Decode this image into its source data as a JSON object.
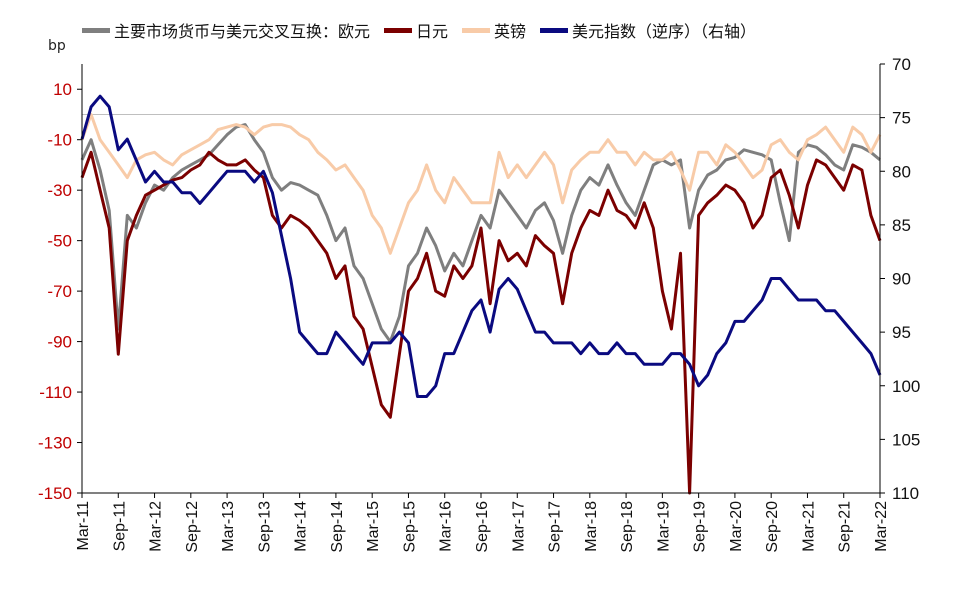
{
  "chart_data": {
    "type": "line",
    "unit_left": "bp",
    "left_axis": {
      "ylim": [
        -150,
        20
      ],
      "ticks": [
        10,
        -10,
        -30,
        -50,
        -70,
        -90,
        -110,
        -130,
        -150
      ],
      "tick_color": "#c00000"
    },
    "right_axis": {
      "ylim": [
        70,
        110
      ],
      "ticks": [
        70,
        75,
        80,
        85,
        90,
        95,
        100,
        105,
        110
      ],
      "inverted": true
    },
    "x_labels": [
      "Mar-11",
      "Sep-11",
      "Mar-12",
      "Sep-12",
      "Mar-13",
      "Sep-13",
      "Mar-14",
      "Sep-14",
      "Mar-15",
      "Sep-15",
      "Mar-16",
      "Sep-16",
      "Mar-17",
      "Sep-17",
      "Mar-18",
      "Sep-18",
      "Mar-19",
      "Sep-19",
      "Mar-20",
      "Sep-20",
      "Mar-21",
      "Sep-21",
      "Mar-22"
    ],
    "x_step": 0.25,
    "series": [
      {
        "name": "主要市场货币与美元交叉互换：欧元",
        "color": "#7f7f7f",
        "axis": "left",
        "values": [
          -18,
          -10,
          -22,
          -38,
          -85,
          -40,
          -45,
          -35,
          -28,
          -30,
          -25,
          -22,
          -20,
          -18,
          -16,
          -12,
          -8,
          -5,
          -4,
          -10,
          -15,
          -25,
          -30,
          -27,
          -28,
          -30,
          -32,
          -40,
          -50,
          -45,
          -60,
          -65,
          -75,
          -85,
          -90,
          -80,
          -60,
          -55,
          -45,
          -52,
          -62,
          -55,
          -60,
          -50,
          -40,
          -45,
          -30,
          -35,
          -40,
          -45,
          -38,
          -35,
          -42,
          -55,
          -40,
          -30,
          -25,
          -28,
          -20,
          -28,
          -35,
          -40,
          -30,
          -20,
          -18,
          -20,
          -18,
          -45,
          -30,
          -24,
          -22,
          -18,
          -17,
          -14,
          -15,
          -16,
          -18,
          -35,
          -50,
          -15,
          -12,
          -13,
          -16,
          -20,
          -22,
          -12,
          -13,
          -15,
          -18
        ]
      },
      {
        "name": "日元",
        "color": "#7b0000",
        "axis": "left",
        "values": [
          -25,
          -15,
          -30,
          -45,
          -95,
          -50,
          -40,
          -32,
          -30,
          -28,
          -26,
          -25,
          -22,
          -20,
          -15,
          -18,
          -20,
          -20,
          -18,
          -22,
          -25,
          -40,
          -45,
          -40,
          -42,
          -45,
          -50,
          -55,
          -65,
          -60,
          -80,
          -85,
          -100,
          -115,
          -120,
          -95,
          -70,
          -65,
          -55,
          -70,
          -72,
          -60,
          -65,
          -60,
          -45,
          -75,
          -50,
          -58,
          -55,
          -60,
          -48,
          -52,
          -55,
          -75,
          -55,
          -45,
          -38,
          -40,
          -30,
          -38,
          -40,
          -45,
          -35,
          -45,
          -70,
          -85,
          -55,
          -150,
          -40,
          -35,
          -32,
          -28,
          -30,
          -35,
          -45,
          -40,
          -25,
          -22,
          -32,
          -45,
          -28,
          -18,
          -20,
          -25,
          -30,
          -20,
          -22,
          -40,
          -50
        ]
      },
      {
        "name": "英镑",
        "color": "#f8cba8",
        "axis": "left",
        "values": [
          -10,
          0,
          -10,
          -15,
          -20,
          -25,
          -18,
          -16,
          -15,
          -18,
          -20,
          -16,
          -14,
          -12,
          -10,
          -6,
          -5,
          -4,
          -5,
          -8,
          -5,
          -4,
          -4,
          -5,
          -8,
          -10,
          -15,
          -18,
          -22,
          -20,
          -25,
          -30,
          -40,
          -45,
          -55,
          -45,
          -35,
          -30,
          -20,
          -30,
          -35,
          -25,
          -30,
          -35,
          -35,
          -35,
          -15,
          -25,
          -20,
          -25,
          -20,
          -15,
          -20,
          -35,
          -22,
          -18,
          -15,
          -15,
          -10,
          -15,
          -15,
          -20,
          -15,
          -18,
          -18,
          -15,
          -22,
          -30,
          -15,
          -15,
          -20,
          -12,
          -15,
          -20,
          -25,
          -22,
          -12,
          -10,
          -15,
          -18,
          -10,
          -8,
          -5,
          -10,
          -15,
          -5,
          -8,
          -15,
          -8
        ]
      },
      {
        "name": "美元指数（逆序）（右轴）",
        "color": "#0a0a80",
        "axis": "right",
        "values": [
          77,
          74,
          73,
          74,
          78,
          77,
          79,
          81,
          80,
          81,
          81,
          82,
          82,
          83,
          82,
          81,
          80,
          80,
          80,
          81,
          80,
          82,
          86,
          90,
          95,
          96,
          97,
          97,
          95,
          96,
          97,
          98,
          96,
          96,
          96,
          95,
          96,
          101,
          101,
          100,
          97,
          97,
          95,
          93,
          92,
          95,
          91,
          90,
          91,
          93,
          95,
          95,
          96,
          96,
          96,
          97,
          96,
          97,
          97,
          96,
          97,
          97,
          98,
          98,
          98,
          97,
          97,
          98,
          100,
          99,
          97,
          96,
          94,
          94,
          93,
          92,
          90,
          90,
          91,
          92,
          92,
          92,
          93,
          93,
          94,
          95,
          96,
          97,
          99
        ]
      }
    ]
  }
}
